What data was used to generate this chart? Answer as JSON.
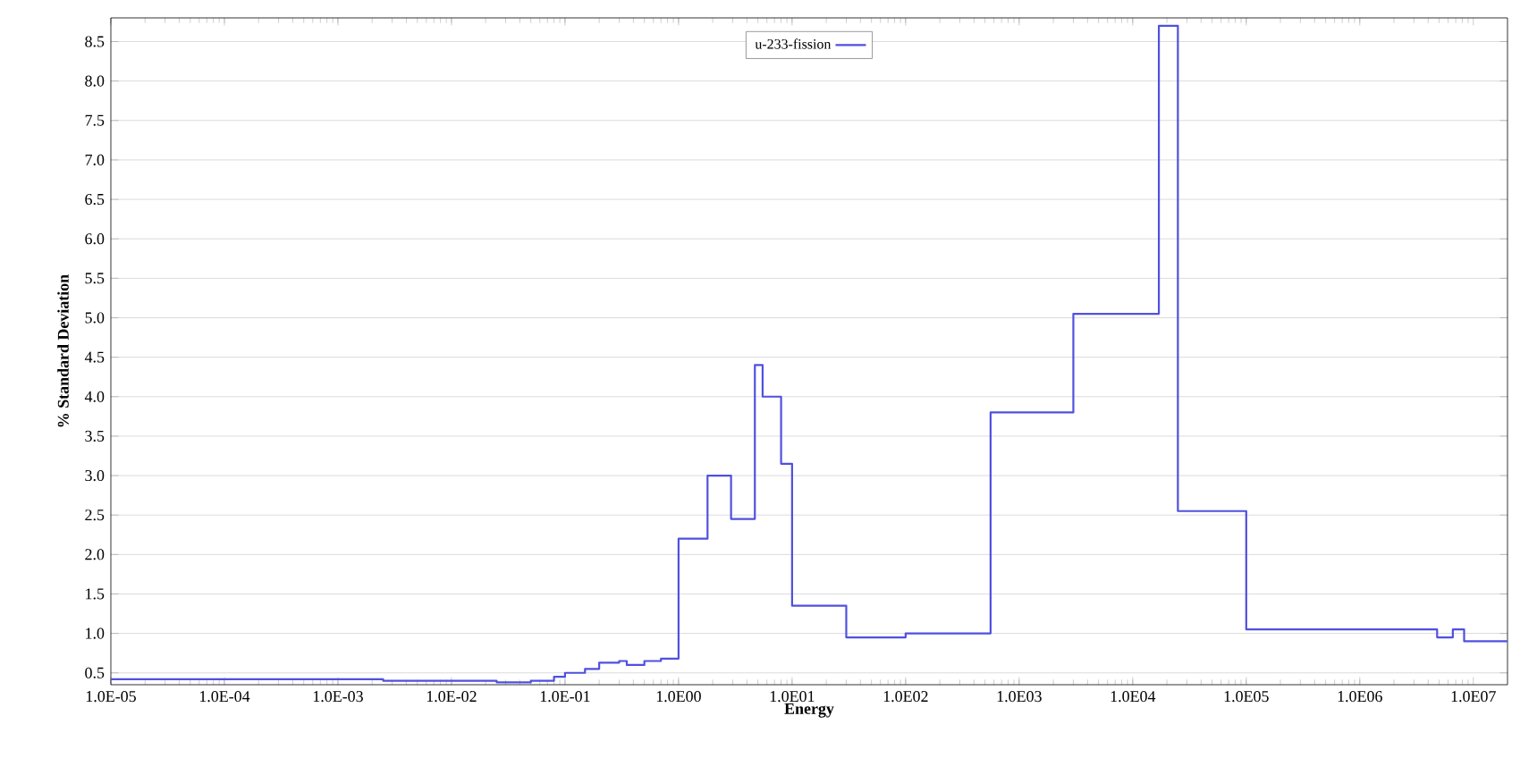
{
  "chart_data": {
    "type": "step",
    "xlabel": "Energy",
    "ylabel": "% Standard Deviation",
    "log": "x",
    "grid": "y",
    "legend": "top",
    "marker": "none",
    "line_style": "solid",
    "xlim": [
      1e-05,
      20000000.0
    ],
    "ylim": [
      0.35,
      8.8
    ],
    "xticks": [
      {
        "value": 1e-05,
        "label": "1.0E-05"
      },
      {
        "value": 0.0001,
        "label": "1.0E-04"
      },
      {
        "value": 0.001,
        "label": "1.0E-03"
      },
      {
        "value": 0.01,
        "label": "1.0E-02"
      },
      {
        "value": 0.1,
        "label": "1.0E-01"
      },
      {
        "value": 1,
        "label": "1.0E00"
      },
      {
        "value": 10,
        "label": "1.0E01"
      },
      {
        "value": 100,
        "label": "1.0E02"
      },
      {
        "value": 1000,
        "label": "1.0E03"
      },
      {
        "value": 10000,
        "label": "1.0E04"
      },
      {
        "value": 100000,
        "label": "1.0E05"
      },
      {
        "value": 1000000,
        "label": "1.0E06"
      },
      {
        "value": 10000000,
        "label": "1.0E07"
      }
    ],
    "yticks": [
      {
        "value": 0.5,
        "label": "0.5"
      },
      {
        "value": 1,
        "label": "1.0"
      },
      {
        "value": 1.5,
        "label": "1.5"
      },
      {
        "value": 2,
        "label": "2.0"
      },
      {
        "value": 2.5,
        "label": "2.5"
      },
      {
        "value": 3,
        "label": "3.0"
      },
      {
        "value": 3.5,
        "label": "3.5"
      },
      {
        "value": 4,
        "label": "4.0"
      },
      {
        "value": 4.5,
        "label": "4.5"
      },
      {
        "value": 5,
        "label": "5.0"
      },
      {
        "value": 5.5,
        "label": "5.5"
      },
      {
        "value": 6,
        "label": "6.0"
      },
      {
        "value": 6.5,
        "label": "6.5"
      },
      {
        "value": 7,
        "label": "7.0"
      },
      {
        "value": 7.5,
        "label": "7.5"
      },
      {
        "value": 8,
        "label": "8.0"
      },
      {
        "value": 8.5,
        "label": "8.5"
      }
    ],
    "series": [
      {
        "name": "u-233-fission",
        "color": "#5050e0",
        "x": [
          1e-05,
          0.0025,
          0.025,
          0.05,
          0.08,
          0.1,
          0.15,
          0.2,
          0.3,
          0.35,
          0.5,
          0.7,
          1.0,
          1.8,
          2.9,
          4.7,
          5.5,
          8,
          10,
          30,
          100,
          560,
          3000,
          17000,
          25000,
          100000,
          4800000.0,
          6600000.0,
          8300000.0,
          20000000.0
        ],
        "values": [
          0.42,
          0.4,
          0.38,
          0.4,
          0.45,
          0.5,
          0.55,
          0.63,
          0.65,
          0.6,
          0.65,
          0.68,
          2.2,
          3.0,
          2.45,
          4.4,
          4.0,
          3.15,
          1.35,
          0.95,
          1.0,
          3.8,
          5.05,
          8.7,
          2.55,
          1.05,
          0.95,
          1.05,
          0.9,
          0.9
        ]
      }
    ]
  }
}
